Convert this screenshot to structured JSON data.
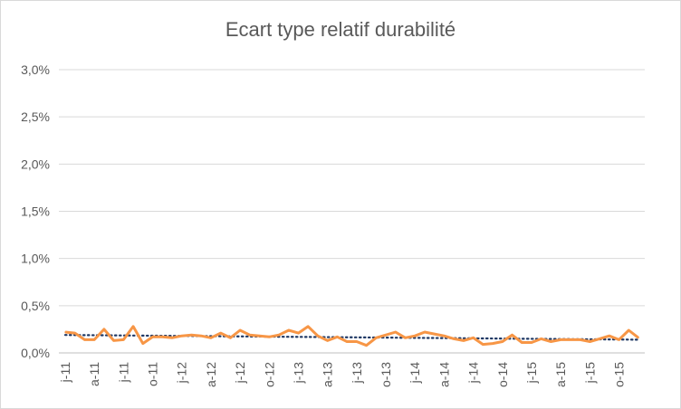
{
  "chart_data": {
    "type": "line",
    "title": "Ecart type relatif durabilité",
    "xlabel": "",
    "ylabel": "",
    "ylim": [
      0,
      0.03
    ],
    "yticks": [
      {
        "value": 0,
        "label": "0,0%"
      },
      {
        "value": 0.005,
        "label": "0,5%"
      },
      {
        "value": 0.01,
        "label": "1,0%"
      },
      {
        "value": 0.015,
        "label": "1,5%"
      },
      {
        "value": 0.02,
        "label": "2,0%"
      },
      {
        "value": 0.025,
        "label": "2,5%"
      },
      {
        "value": 0.03,
        "label": "3,0%"
      }
    ],
    "xticks": [
      {
        "index": 0,
        "label": "j-11"
      },
      {
        "index": 3,
        "label": "a-11"
      },
      {
        "index": 6,
        "label": "j-11"
      },
      {
        "index": 9,
        "label": "o-11"
      },
      {
        "index": 12,
        "label": "j-12"
      },
      {
        "index": 15,
        "label": "a-12"
      },
      {
        "index": 18,
        "label": "j-12"
      },
      {
        "index": 21,
        "label": "o-12"
      },
      {
        "index": 24,
        "label": "j-13"
      },
      {
        "index": 27,
        "label": "a-13"
      },
      {
        "index": 30,
        "label": "j-13"
      },
      {
        "index": 33,
        "label": "o-13"
      },
      {
        "index": 36,
        "label": "j-14"
      },
      {
        "index": 39,
        "label": "a-14"
      },
      {
        "index": 42,
        "label": "j-14"
      },
      {
        "index": 45,
        "label": "o-14"
      },
      {
        "index": 48,
        "label": "j-15"
      },
      {
        "index": 51,
        "label": "a-15"
      },
      {
        "index": 54,
        "label": "j-15"
      },
      {
        "index": 57,
        "label": "o-15"
      }
    ],
    "grid": true,
    "series": [
      {
        "color": "#f79646",
        "values": [
          0.0022,
          0.0021,
          0.0014,
          0.0014,
          0.0025,
          0.0013,
          0.0014,
          0.0028,
          0.001,
          0.0017,
          0.0017,
          0.0016,
          0.0018,
          0.0019,
          0.0018,
          0.0016,
          0.0021,
          0.0016,
          0.0024,
          0.0019,
          0.0018,
          0.0017,
          0.0019,
          0.0024,
          0.0021,
          0.0028,
          0.0018,
          0.0013,
          0.0017,
          0.0012,
          0.0012,
          0.0008,
          0.0016,
          0.0019,
          0.0022,
          0.0016,
          0.0018,
          0.0022,
          0.002,
          0.0018,
          0.0015,
          0.0013,
          0.0016,
          0.0009,
          0.001,
          0.0012,
          0.0019,
          0.0011,
          0.0011,
          0.0015,
          0.0012,
          0.0014,
          0.0014,
          0.0014,
          0.0012,
          0.0015,
          0.0018,
          0.0014,
          0.0024,
          0.0016
        ]
      }
    ],
    "trendline": {
      "color": "#1f3864",
      "style": "dotted",
      "start": 0.0019,
      "end": 0.0014
    }
  }
}
